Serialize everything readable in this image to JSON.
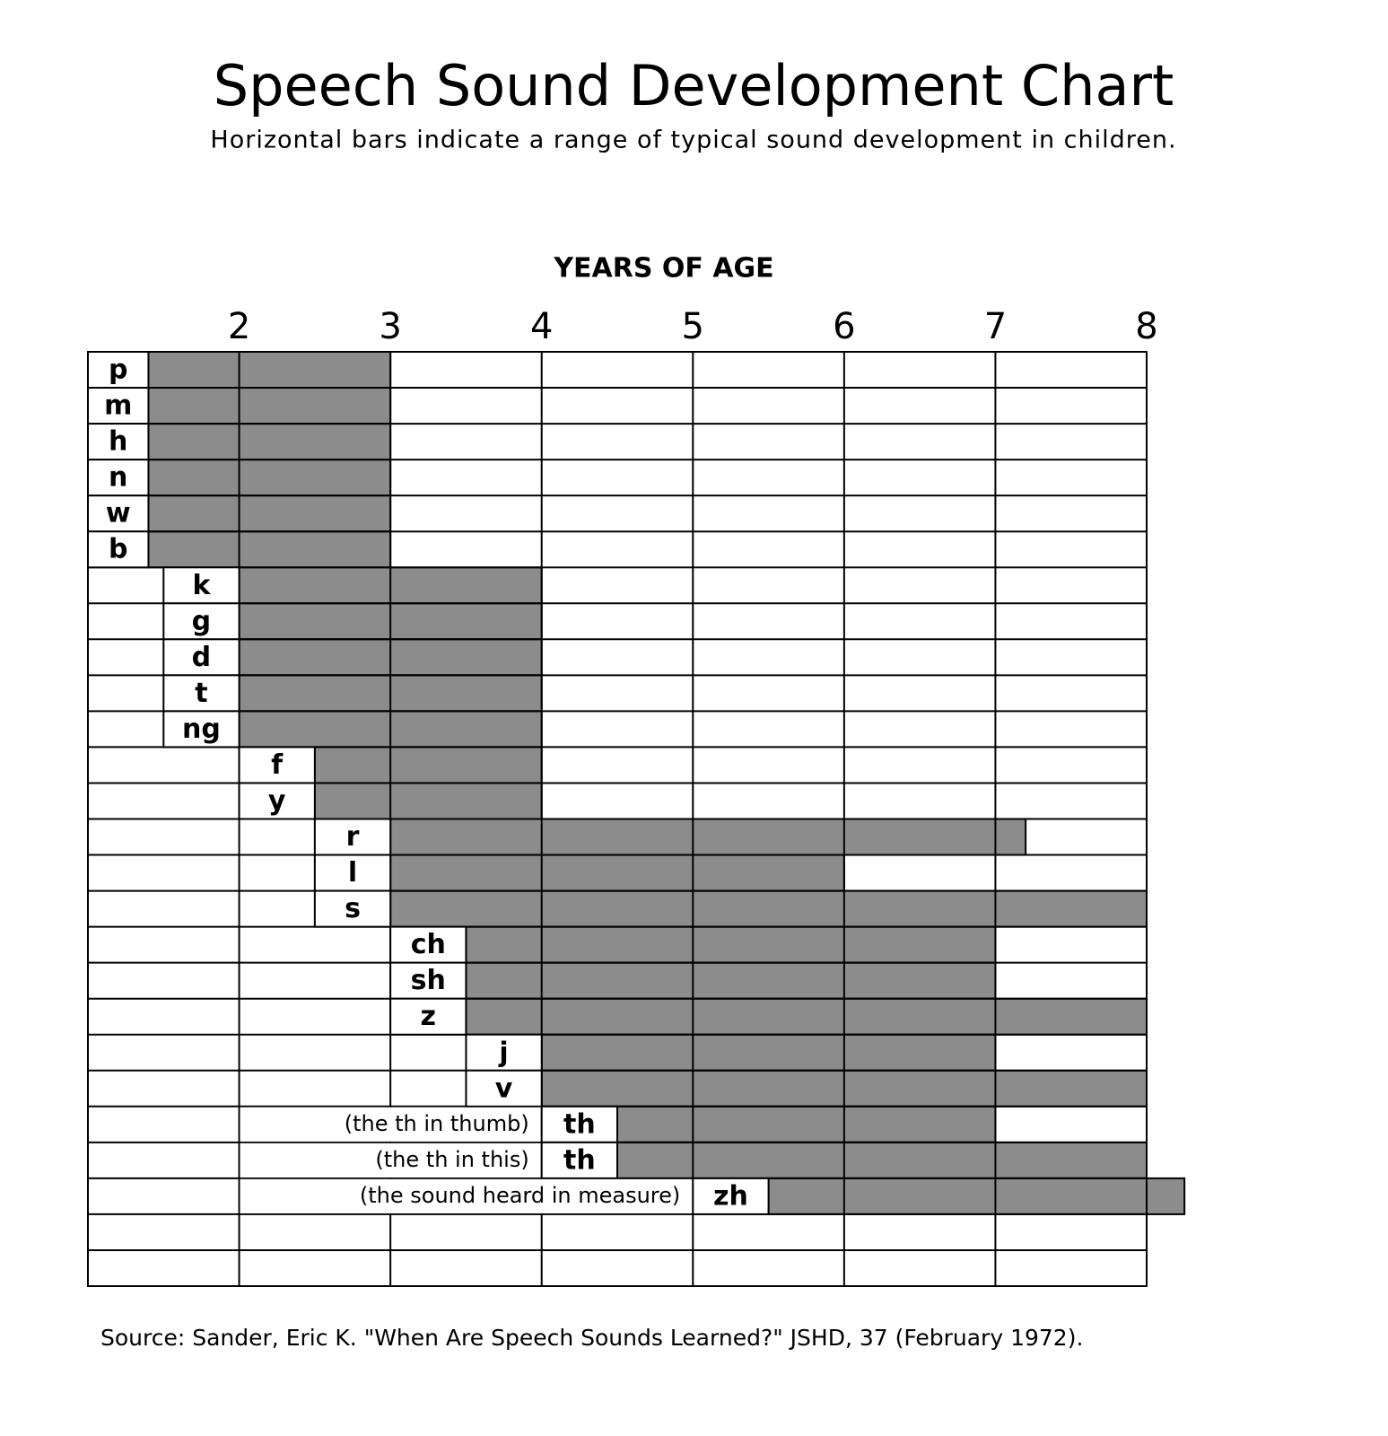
{
  "chart_data": {
    "type": "range_bar",
    "title": "Speech Sound Development Chart",
    "subtitle": "Horizontal bars indicate a range of typical sound development in children.",
    "xlabel": "YEARS OF AGE",
    "categories": [
      "p",
      "m",
      "h",
      "n",
      "w",
      "b",
      "k",
      "g",
      "d",
      "t",
      "ng",
      "f",
      "y",
      "r",
      "l",
      "s",
      "ch",
      "sh",
      "z",
      "j",
      "v",
      "th",
      "th",
      "zh",
      null,
      null
    ],
    "starts": [
      1.4,
      1.4,
      1.4,
      1.4,
      1.4,
      1.4,
      2,
      2,
      2,
      2,
      2,
      2.5,
      2.5,
      3,
      3,
      3,
      3.5,
      3.5,
      3.5,
      4,
      4,
      4.5,
      4.5,
      5.5,
      null,
      null
    ],
    "ends": [
      3,
      3,
      3,
      3,
      3,
      3,
      4,
      4,
      4,
      4,
      4,
      4,
      4,
      7.2,
      6,
      8,
      7,
      7,
      8,
      7,
      8,
      7,
      8,
      8.25,
      null,
      null
    ],
    "annotations": [
      null,
      null,
      null,
      null,
      null,
      null,
      null,
      null,
      null,
      null,
      null,
      null,
      null,
      null,
      null,
      null,
      null,
      null,
      null,
      null,
      null,
      "(the th in thumb)",
      "(the th in this)",
      "(the sound heard in measure)",
      null,
      null
    ],
    "color": "#8c8c8c",
    "xlim": [
      1,
      8
    ],
    "xticks": [
      2,
      3,
      4,
      5,
      6,
      7,
      8
    ],
    "source": "Source:  Sander, Eric K. \"When Are Speech Sounds Learned?\" JSHD, 37  (February 1972)."
  }
}
